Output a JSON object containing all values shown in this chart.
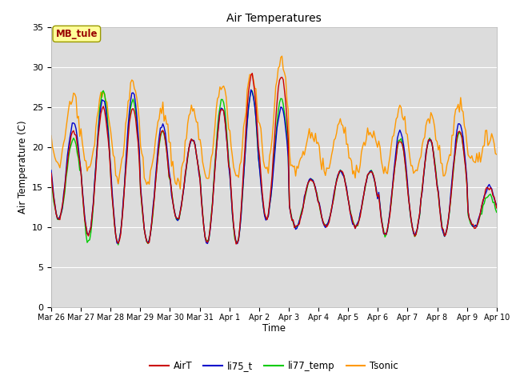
{
  "title": "Air Temperatures",
  "ylabel": "Air Temperature (C)",
  "xlabel": "Time",
  "station_label": "MB_tule",
  "ylim": [
    0,
    35
  ],
  "yticks": [
    0,
    5,
    10,
    15,
    20,
    25,
    30,
    35
  ],
  "plot_bg_color": "#dcdcdc",
  "fig_bg_color": "#ffffff",
  "legend_entries": [
    "AirT",
    "li75_t",
    "li77_temp",
    "Tsonic"
  ],
  "legend_colors": [
    "#cc0000",
    "#0000cc",
    "#00cc00",
    "#ff9900"
  ],
  "x_tick_labels": [
    "Mar 26",
    "Mar 27",
    "Mar 28",
    "Mar 29",
    "Mar 30",
    "Mar 31",
    "Apr 1",
    "Apr 2",
    "Apr 3",
    "Apr 4",
    "Apr 5",
    "Apr 6",
    "Apr 7",
    "Apr 8",
    "Apr 9",
    "Apr 10"
  ],
  "grid_color": "#ffffff",
  "spine_color": "#aaaaaa",
  "station_text_color": "#990000",
  "station_box_facecolor": "#ffff99",
  "station_box_edgecolor": "#999900"
}
